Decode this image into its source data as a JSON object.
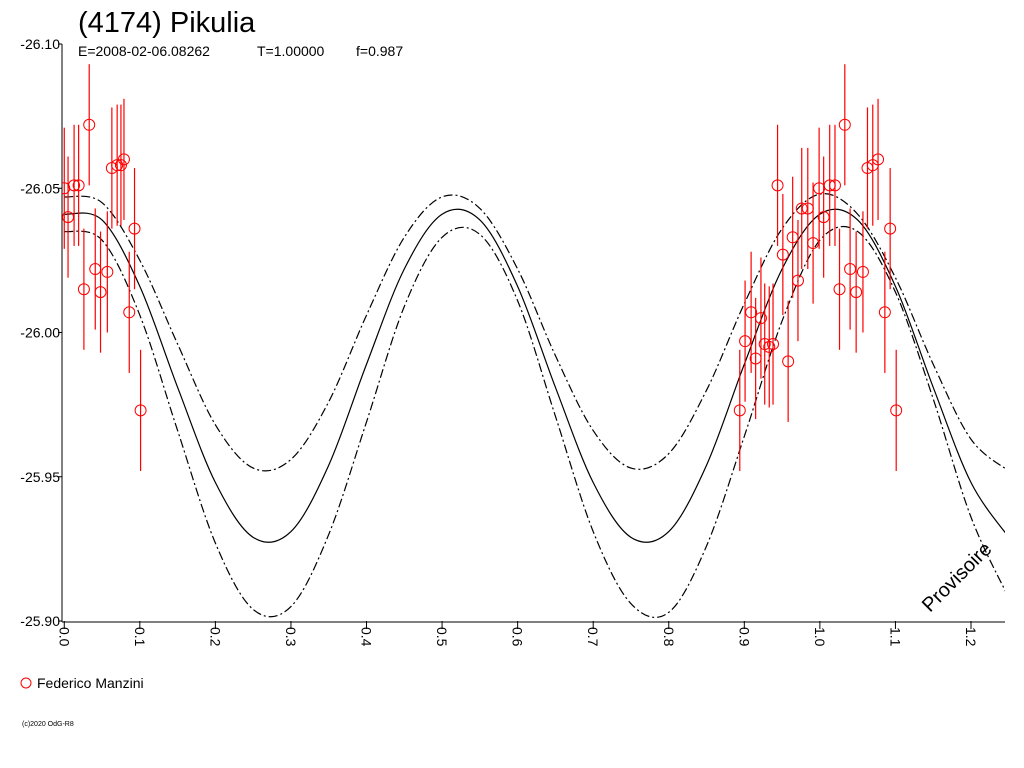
{
  "chart_data": {
    "type": "scatter",
    "title": "(4174) Pikulia",
    "subtitle": [
      "E=2008-02-06.08262",
      "T=1.00000",
      "f=0.987"
    ],
    "watermark": "Provisoire",
    "copyright": "(c)2020 OdG-R8",
    "xlim": [
      -0.003,
      1.245
    ],
    "ylim": [
      -26.1,
      -25.9
    ],
    "y_reversed": true,
    "xticks": [
      {
        "value": 0,
        "label": "0.0"
      },
      0.1,
      0.2,
      0.3,
      0.4,
      0.5,
      0.6,
      0.7,
      0.8,
      0.9,
      {
        "value": 1,
        "label": "1.0"
      },
      1.1,
      1.2
    ],
    "yticks": [
      {
        "value": -26.1,
        "label": "-26.10"
      },
      -26.05,
      {
        "value": -26,
        "label": "-26.00"
      },
      -25.95,
      {
        "value": -25.9,
        "label": "-25.90"
      }
    ],
    "series": [
      {
        "name": "Federico Manzini",
        "color": "#ff0000",
        "error": 0.021,
        "x": [
          0.0,
          0.005,
          0.013,
          0.019,
          0.026,
          0.033,
          0.041,
          0.048,
          0.057,
          0.063,
          0.07,
          0.075,
          0.079,
          0.086,
          0.093,
          0.101,
          0.894,
          0.901,
          0.909,
          0.915,
          0.922,
          0.927,
          0.933,
          0.938,
          0.944,
          0.951,
          0.958,
          0.964,
          0.971,
          0.976,
          0.984,
          0.991,
          0.999,
          1.005,
          1.013,
          1.02,
          1.026,
          1.033,
          1.04,
          1.048,
          1.057,
          1.063,
          1.07,
          1.077,
          1.086,
          1.093,
          1.101
        ],
        "values": [
          -26.05,
          -26.04,
          -26.051,
          -26.051,
          -26.015,
          -26.072,
          -26.022,
          -26.014,
          -26.021,
          -26.057,
          -26.058,
          -26.058,
          -26.06,
          -26.007,
          -26.036,
          -25.973,
          -25.973,
          -25.997,
          -26.007,
          -25.991,
          -26.005,
          -25.996,
          -25.995,
          -25.996,
          -26.051,
          -26.027,
          -25.99,
          -26.033,
          -26.018,
          -26.043,
          -26.043,
          -26.031,
          -26.05,
          -26.04,
          -26.051,
          -26.051,
          -26.015,
          -26.072,
          -26.022,
          -26.014,
          -26.021,
          -26.057,
          -26.058,
          -26.06,
          -26.007,
          -26.036,
          -25.973
        ]
      }
    ],
    "fit": {
      "color": "#000000",
      "x": [
        0,
        0.05,
        0.1,
        0.15,
        0.2,
        0.25,
        0.3,
        0.35,
        0.4,
        0.45,
        0.5,
        0.55,
        0.6,
        0.65,
        0.7,
        0.75,
        0.8,
        0.85,
        0.9,
        0.95,
        1,
        1.05,
        1.1,
        1.15,
        1.2,
        1.25
      ],
      "curves": [
        {
          "style": "dashed",
          "values": [
            -26.047,
            -26.045,
            -26.025,
            -25.996,
            -25.968,
            -25.953,
            -25.956,
            -25.976,
            -26.006,
            -26.033,
            -26.047,
            -26.043,
            -26.022,
            -25.992,
            -25.966,
            -25.953,
            -25.958,
            -25.98,
            -26.01,
            -26.036,
            -26.048,
            -26.041,
            -26.019,
            -25.989,
            -25.963,
            -25.952
          ]
        },
        {
          "style": "solid",
          "values": [
            -26.041,
            -26.039,
            -26.016,
            -25.981,
            -25.948,
            -25.929,
            -25.931,
            -25.954,
            -25.989,
            -26.022,
            -26.041,
            -26.039,
            -26.016,
            -25.981,
            -25.948,
            -25.929,
            -25.931,
            -25.954,
            -25.989,
            -26.022,
            -26.041,
            -26.039,
            -26.016,
            -25.981,
            -25.948,
            -25.929
          ]
        },
        {
          "style": "dashed",
          "values": [
            -26.035,
            -26.032,
            -26.006,
            -25.966,
            -25.927,
            -25.904,
            -25.905,
            -25.93,
            -25.969,
            -26.009,
            -26.033,
            -26.034,
            -26.011,
            -25.971,
            -25.931,
            -25.906,
            -25.903,
            -25.926,
            -25.964,
            -26.004,
            -26.032,
            -26.035,
            -26.014,
            -25.977,
            -25.936,
            -25.908
          ]
        }
      ]
    }
  }
}
